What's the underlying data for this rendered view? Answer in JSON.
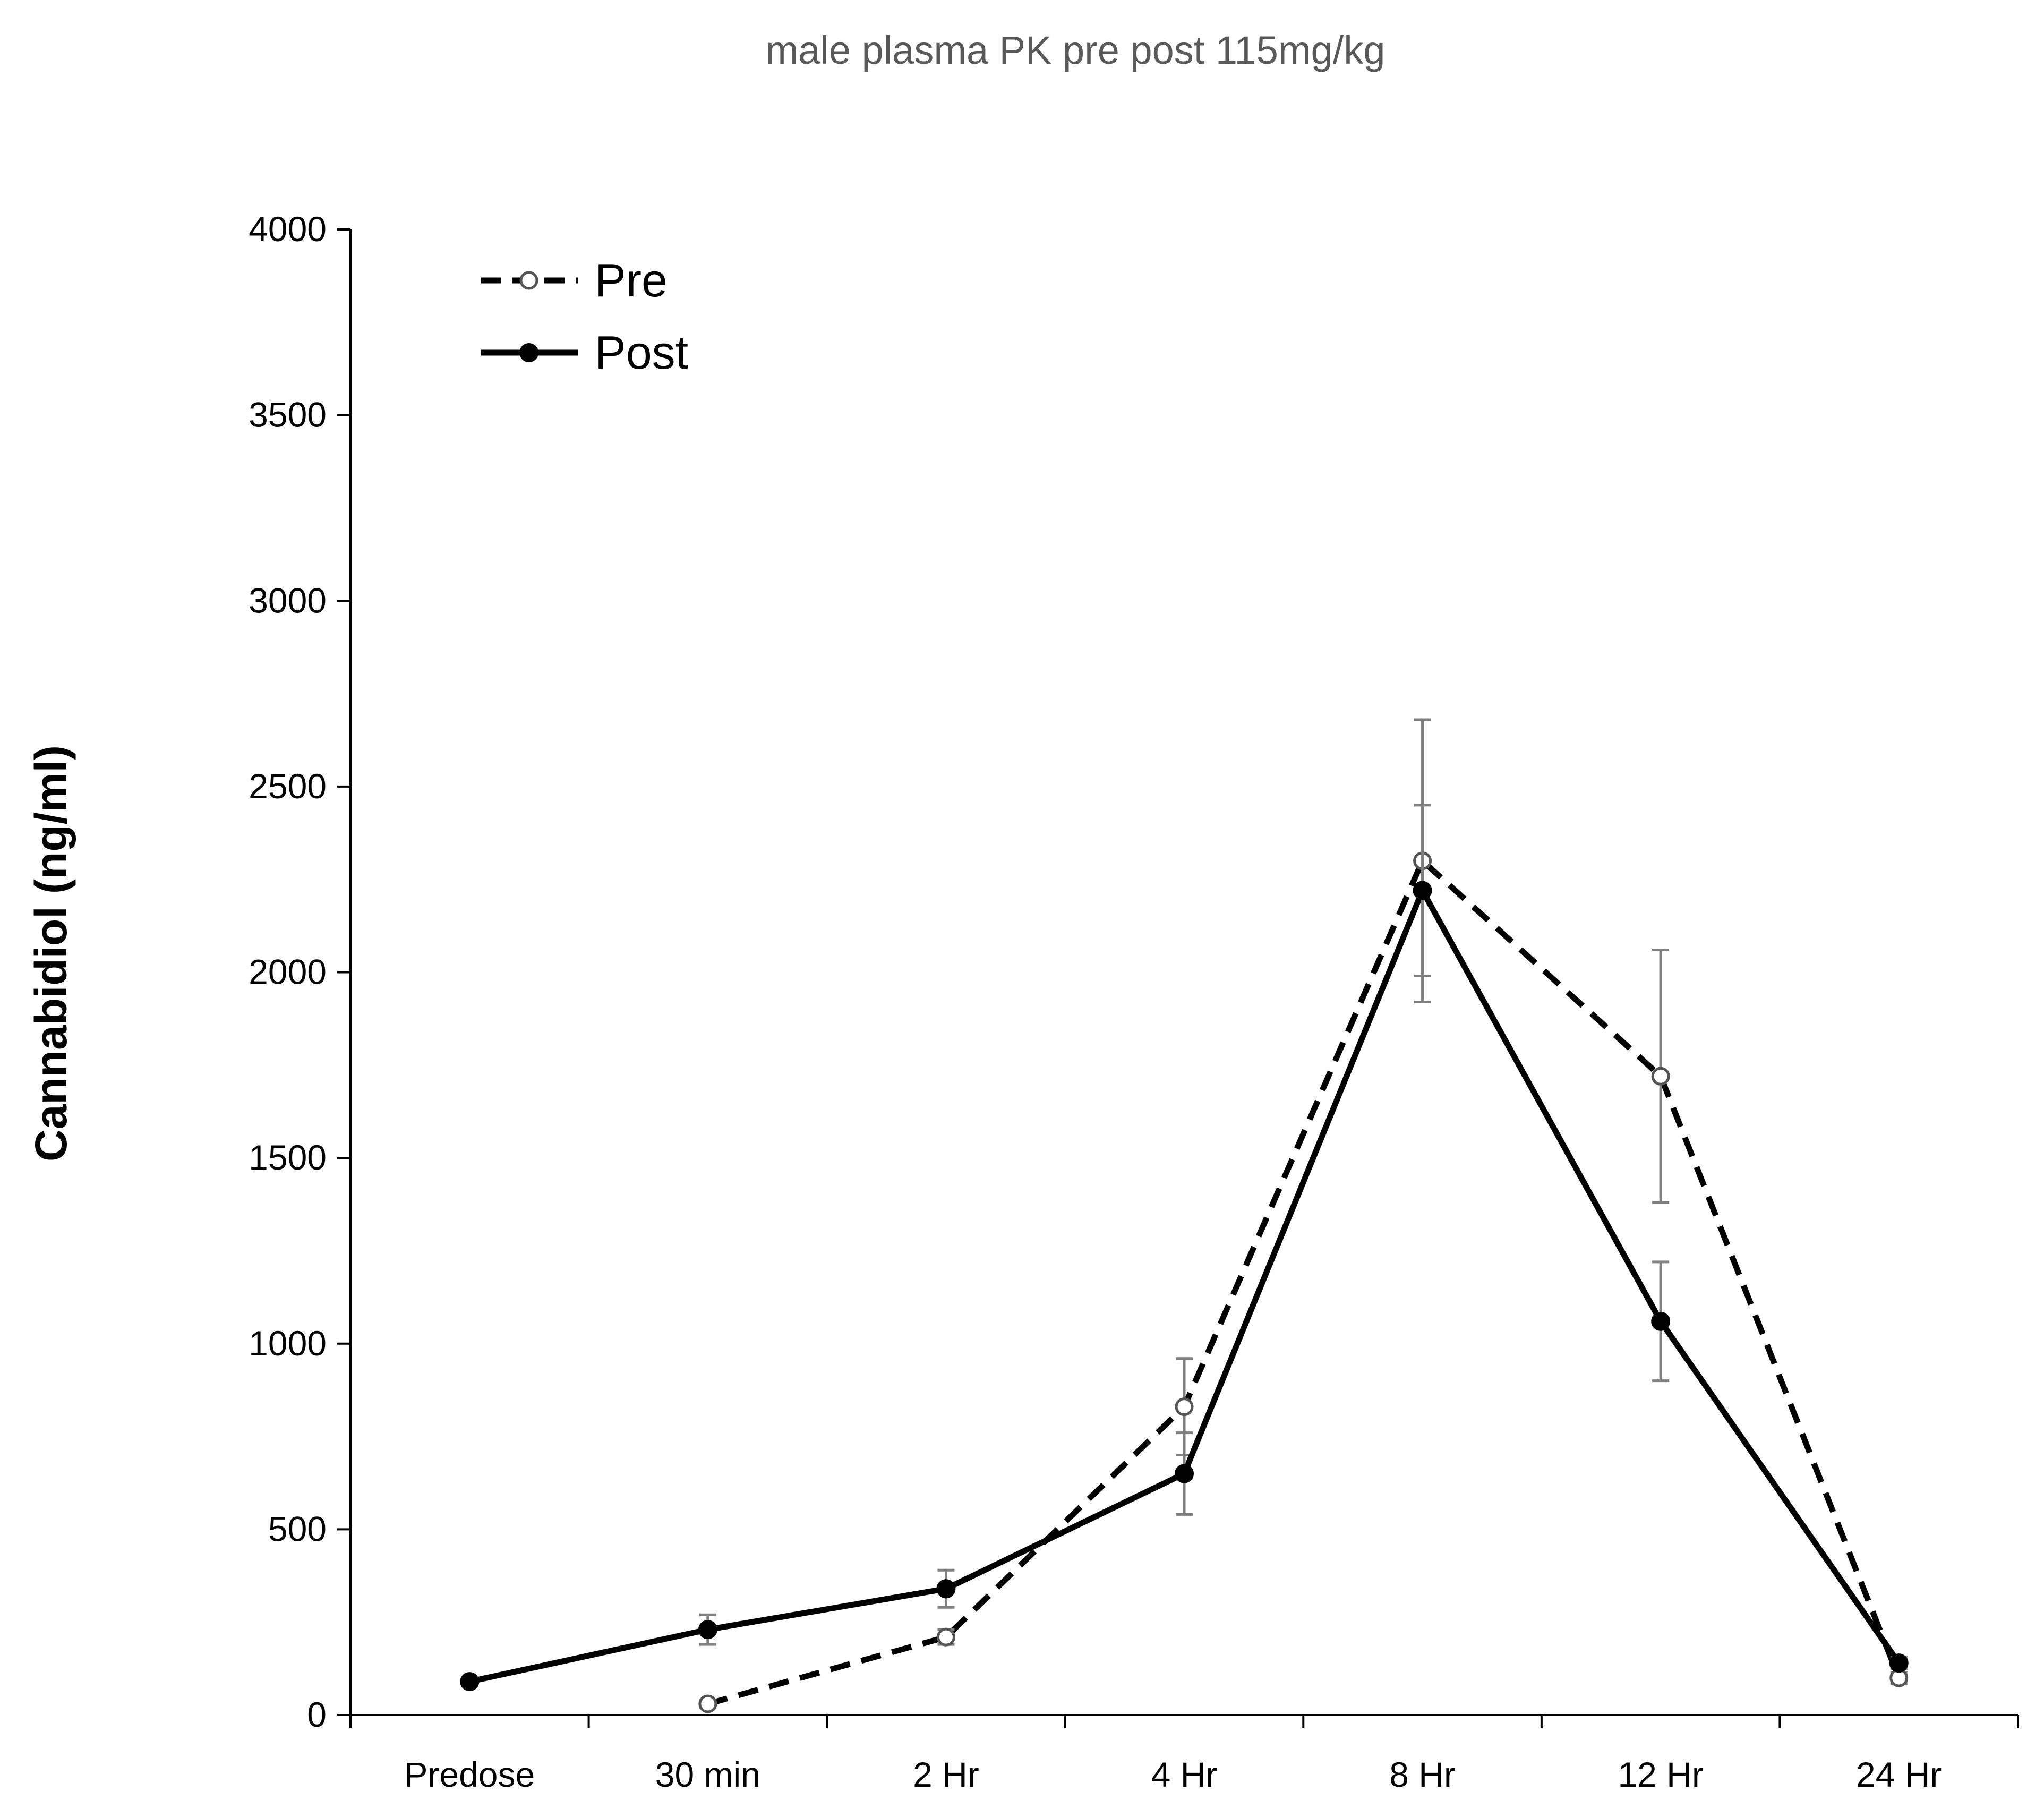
{
  "chart_data": {
    "type": "line",
    "title": "male plasma PK pre post 115mg/kg",
    "xlabel": "",
    "ylabel": "Cannabidiol  (ng/ml)",
    "ylim": [
      0,
      4000
    ],
    "yticks": [
      0,
      500,
      1000,
      1500,
      2000,
      2500,
      3000,
      3500,
      4000
    ],
    "categories": [
      "Predose",
      "30 min",
      "2 Hr",
      "4 Hr",
      "8 Hr",
      "12 Hr",
      "24 Hr"
    ],
    "grid": false,
    "legend_position": "top-left",
    "series": [
      {
        "name": "Pre",
        "line_style": "dashed",
        "marker": "open-circle",
        "color": "#000000",
        "values": [
          null,
          30,
          210,
          830,
          2300,
          1720,
          100
        ],
        "errors": [
          null,
          10,
          20,
          130,
          380,
          340,
          15
        ]
      },
      {
        "name": "Post",
        "line_style": "solid",
        "marker": "filled-circle",
        "color": "#000000",
        "values": [
          90,
          230,
          340,
          650,
          2220,
          1060,
          140
        ],
        "errors": [
          5,
          40,
          50,
          110,
          230,
          160,
          15
        ]
      }
    ]
  }
}
